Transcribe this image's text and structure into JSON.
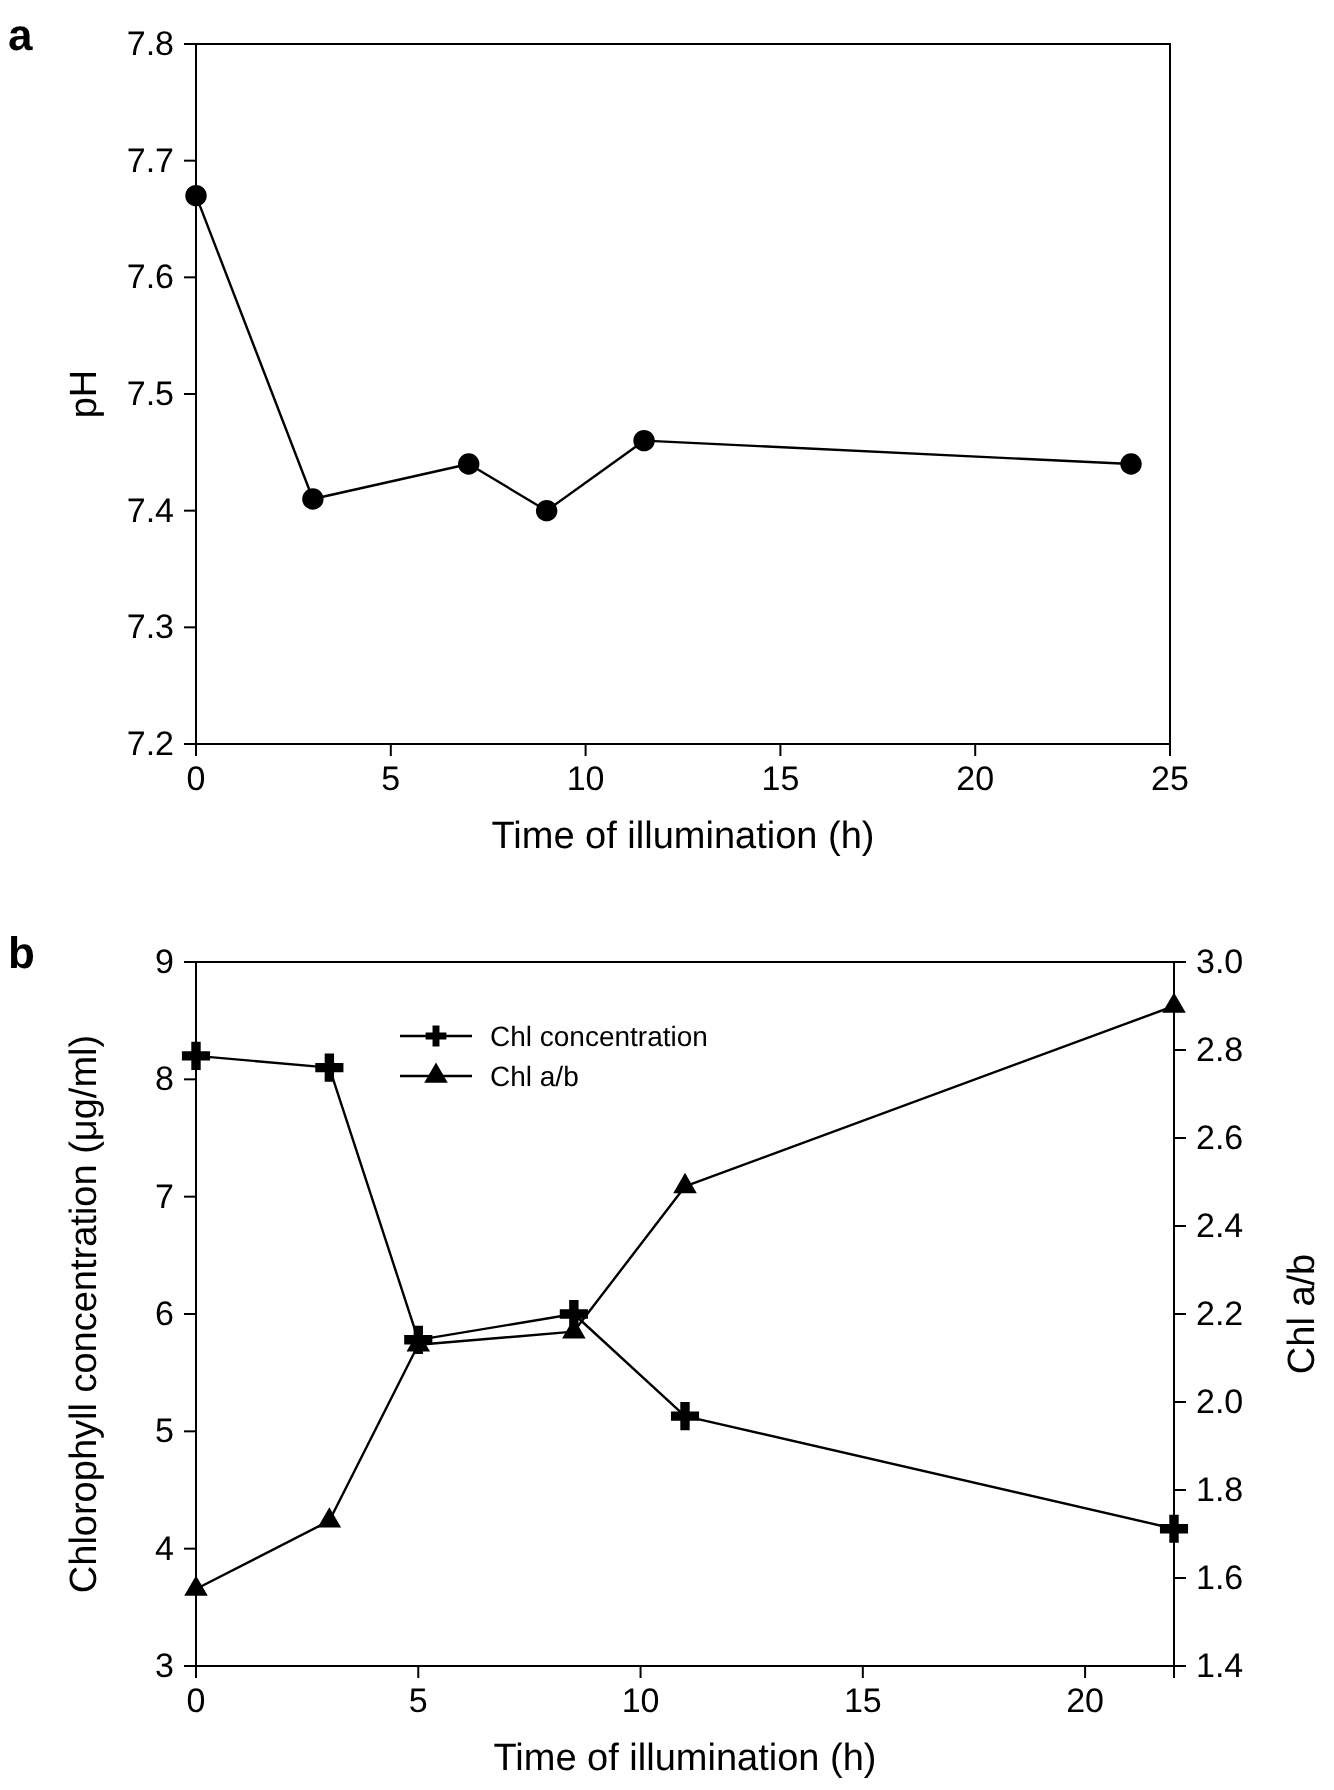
{
  "chart_data": [
    {
      "type": "line",
      "title": "a",
      "xlabel": "Time of illumination (h)",
      "ylabel": "pH",
      "xlim": [
        0,
        25
      ],
      "xticks": [
        0,
        5,
        10,
        15,
        20,
        25
      ],
      "ylim": [
        7.2,
        7.8
      ],
      "yticks": [
        {
          "value": 7.2,
          "label": "7.2"
        },
        {
          "value": 7.3,
          "label": "7.3"
        },
        {
          "value": 7.4,
          "label": "7.4"
        },
        {
          "value": 7.5,
          "label": "7.5"
        },
        {
          "value": 7.6,
          "label": "7.6"
        },
        {
          "value": 7.7,
          "label": "7.7"
        },
        {
          "value": 7.8,
          "label": "7.8"
        }
      ],
      "marker": "circle",
      "line_style": "solid",
      "legend": false,
      "series": [
        {
          "color": "#000000",
          "x": [
            0,
            3,
            7,
            9,
            11.5,
            24
          ],
          "values": [
            7.67,
            7.41,
            7.44,
            7.4,
            7.46,
            7.44
          ]
        }
      ]
    },
    {
      "type": "line",
      "title": "b",
      "xlabel": "Time of illumination (h)",
      "ylabel": "Chlorophyll concentration (μg/ml)",
      "y2label": "Chl a/b",
      "xlim": [
        0,
        22
      ],
      "xticks": [
        0,
        5,
        10,
        15,
        20
      ],
      "ylim": [
        3,
        9
      ],
      "yticks": [
        3,
        4,
        5,
        6,
        7,
        8,
        9
      ],
      "y2lim": [
        1.4,
        3.0
      ],
      "y2ticks": [
        {
          "value": 1.4,
          "label": "1.4"
        },
        {
          "value": 1.6,
          "label": "1.6"
        },
        {
          "value": 1.8,
          "label": "1.8"
        },
        {
          "value": 2.0,
          "label": "2.0"
        },
        {
          "value": 2.2,
          "label": "2.2"
        },
        {
          "value": 2.4,
          "label": "2.4"
        },
        {
          "value": 2.6,
          "label": "2.6"
        },
        {
          "value": 2.8,
          "label": "2.8"
        },
        {
          "value": 3.0,
          "label": "3.0"
        }
      ],
      "line_style": "solid",
      "legend": "top left",
      "series": [
        {
          "name": "Chl concentration",
          "color": "#000000",
          "marker": "cross",
          "x": [
            0,
            3,
            5,
            8.5,
            11,
            22
          ],
          "values": [
            8.2,
            8.1,
            5.78,
            6.0,
            5.13,
            4.17
          ]
        },
        {
          "name": "Chl a/b",
          "color": "#000000",
          "marker": "triangle",
          "axis": "y2",
          "x": [
            0,
            3,
            5,
            8.5,
            11,
            22
          ],
          "values": [
            1.575,
            1.73,
            2.13,
            2.16,
            2.49,
            2.9
          ]
        }
      ]
    }
  ]
}
